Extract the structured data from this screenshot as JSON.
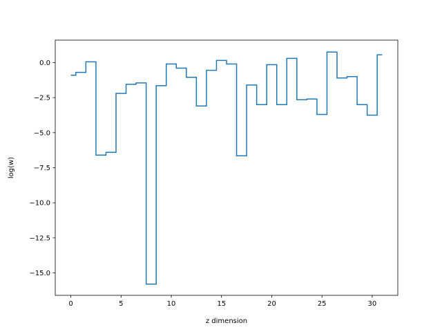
{
  "chart_data": {
    "type": "line",
    "drawstyle": "steps-mid",
    "title": "",
    "xlabel": "z dimension",
    "ylabel": "log(w)",
    "xlim": [
      -1.55,
      32.55
    ],
    "ylim": [
      -16.6,
      1.6
    ],
    "xticks": [
      0,
      5,
      10,
      15,
      20,
      25,
      30
    ],
    "yticks": [
      0.0,
      -2.5,
      -5.0,
      -7.5,
      -10.0,
      -12.5,
      -15.0
    ],
    "xtick_labels": [
      "0",
      "5",
      "10",
      "15",
      "20",
      "25",
      "30"
    ],
    "ytick_labels": [
      "0.0",
      "−2.5",
      "−5.0",
      "−7.5",
      "−10.0",
      "−12.5",
      "−15.0"
    ],
    "grid": false,
    "legend": "none",
    "series": [
      {
        "color": "#1f77b4",
        "x": [
          0,
          1,
          2,
          3,
          4,
          5,
          6,
          7,
          8,
          9,
          10,
          11,
          12,
          13,
          14,
          15,
          16,
          17,
          18,
          19,
          20,
          21,
          22,
          23,
          24,
          25,
          26,
          27,
          28,
          29,
          30,
          31
        ],
        "y": [
          -0.9,
          -0.7,
          0.05,
          -6.6,
          -6.4,
          -2.2,
          -1.55,
          -1.45,
          -15.8,
          -1.65,
          -0.1,
          -0.4,
          -1.05,
          -3.1,
          -0.55,
          0.15,
          -0.1,
          -6.65,
          -1.6,
          -3.0,
          -0.15,
          -3.0,
          0.3,
          -2.65,
          -2.6,
          -3.7,
          0.75,
          -1.1,
          -1.0,
          -3.0,
          -3.75,
          0.55
        ]
      }
    ]
  }
}
